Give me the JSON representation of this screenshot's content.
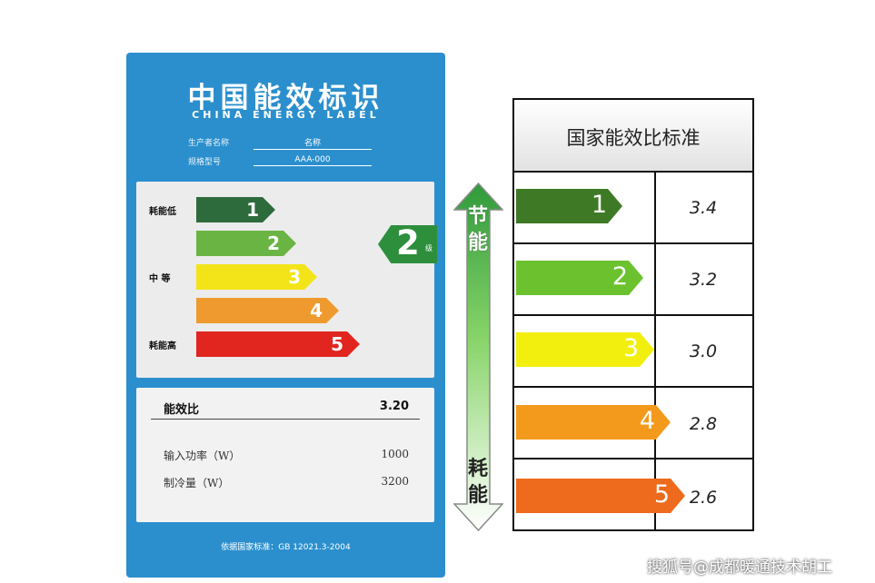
{
  "energy_label": {
    "title": "中国能效标识",
    "subtitle": "CHINA ENERGY LABEL",
    "producer_label": "生产者名称",
    "producer_value": "名称",
    "model_label": "规格型号",
    "model_value": "AAA-000",
    "low_consumption": "耗能低",
    "mid": "中 等",
    "high_consumption": "耗能高",
    "grades": [
      {
        "num": "1",
        "color": "#2e6b3c"
      },
      {
        "num": "2",
        "color": "#6ab444"
      },
      {
        "num": "3",
        "color": "#f3e419"
      },
      {
        "num": "4",
        "color": "#ef9a2e"
      },
      {
        "num": "5",
        "color": "#e0261f"
      }
    ],
    "current_grade": "2",
    "current_grade_suffix": "级",
    "eer_label": "能效比",
    "eer_value": "3.20",
    "input_power_label": "输入功率（W）",
    "input_power_value": "1000",
    "cooling_label": "制冷量（W）",
    "cooling_value": "3200",
    "standard": "依据国家标准：GB 12021.3-2004"
  },
  "scale_arrow": {
    "top_text": [
      "节",
      "能"
    ],
    "bottom_text": [
      "耗",
      "能"
    ]
  },
  "standard_table": {
    "title": "国家能效比标准",
    "rows": [
      {
        "grade": "1",
        "value": "3.4",
        "color": "#3e7a25"
      },
      {
        "grade": "2",
        "value": "3.2",
        "color": "#6bc22e"
      },
      {
        "grade": "3",
        "value": "3.0",
        "color": "#f2ef0e"
      },
      {
        "grade": "4",
        "value": "2.8",
        "color": "#f39a1c"
      },
      {
        "grade": "5",
        "value": "2.6",
        "color": "#ee6a1d"
      }
    ]
  },
  "watermark": "搜狐号@成都暖通技术胡工"
}
